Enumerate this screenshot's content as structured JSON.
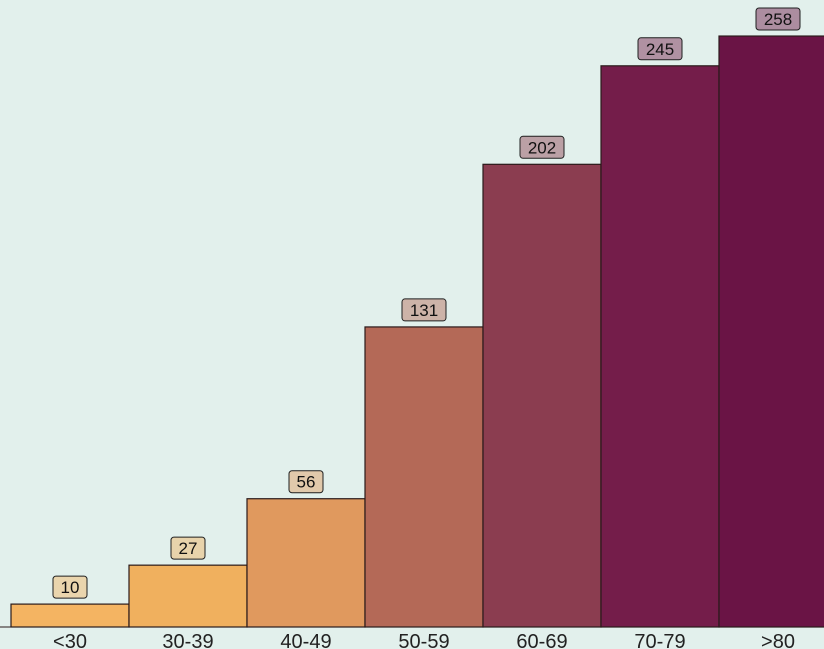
{
  "chart_data": {
    "type": "bar",
    "categories": [
      "<30",
      "30-39",
      "40-49",
      "50-59",
      "60-69",
      "70-79",
      ">80"
    ],
    "values": [
      10,
      27,
      56,
      131,
      202,
      245,
      258
    ],
    "colors": [
      "#f4b462",
      "#f0b05e",
      "#e0995e",
      "#b46957",
      "#8b3d50",
      "#741d4a",
      "#6a1445"
    ],
    "title": "",
    "xlabel": "",
    "ylabel": "",
    "ylim": [
      0,
      265
    ],
    "grid": false,
    "legend": "none",
    "data_labels": [
      "10",
      "27",
      "56",
      "131",
      "202",
      "245",
      "258"
    ]
  }
}
